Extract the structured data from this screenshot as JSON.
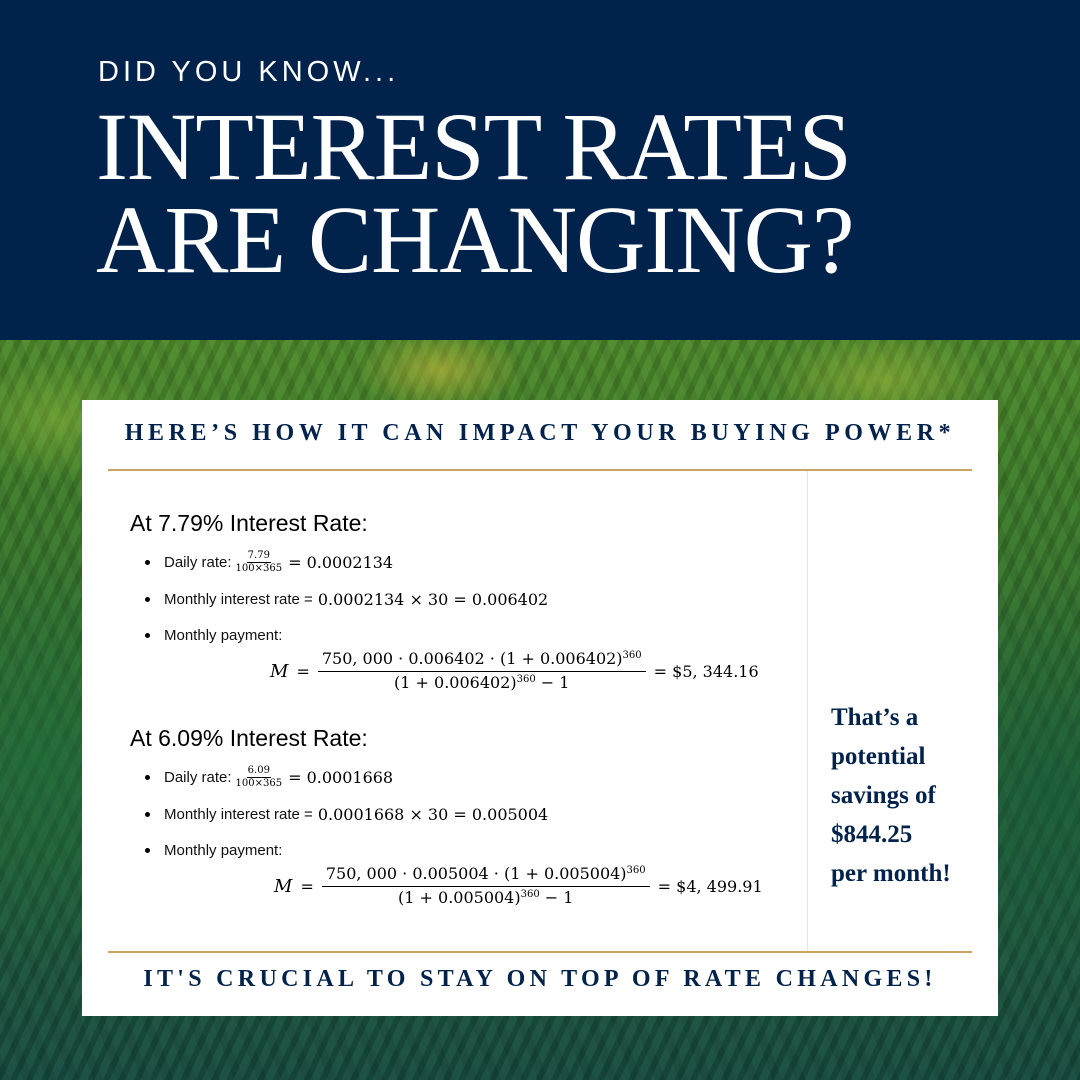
{
  "header": {
    "eyebrow": "DID YOU KNOW...",
    "headline_line1": "INTEREST RATES",
    "headline_line2": "ARE CHANGING?"
  },
  "card": {
    "title": "HERE’S HOW IT CAN IMPACT YOUR BUYING POWER*",
    "footer": "IT'S CRUCIAL TO STAY ON TOP OF RATE CHANGES!",
    "savings_lines": [
      "That’s a",
      "potential",
      "savings of",
      "$844.25",
      "per month!"
    ]
  },
  "calculations": [
    {
      "heading": "At 7.79% Interest Rate:",
      "daily_label": "Daily rate:",
      "daily_num": "7.79",
      "daily_den": "100×365",
      "daily_result": "= 0.0002134",
      "monthly_label": "Monthly interest rate =",
      "monthly_expr": "0.0002134 × 30 = 0.006402",
      "payment_label": "Monthly payment:",
      "payment_var": "M",
      "payment_eq": "=",
      "payment_num_main": "750, 000 · 0.006402 · (1 + 0.006402)",
      "payment_num_exp": "360",
      "payment_den_main": "(1 + 0.006402)",
      "payment_den_exp": "360",
      "payment_den_tail": " − 1",
      "payment_result": "= $5, 344.16"
    },
    {
      "heading": "At 6.09% Interest Rate:",
      "daily_label": "Daily rate:",
      "daily_num": "6.09",
      "daily_den": "100×365",
      "daily_result": "= 0.0001668",
      "monthly_label": "Monthly interest rate =",
      "monthly_expr": "0.0001668 × 30 = 0.005004",
      "payment_label": "Monthly payment:",
      "payment_var": "M",
      "payment_eq": "=",
      "payment_num_main": "750, 000 · 0.005004 · (1 + 0.005004)",
      "payment_num_exp": "360",
      "payment_den_main": "(1 + 0.005004)",
      "payment_den_exp": "360",
      "payment_den_tail": " − 1",
      "payment_result": "= $4, 499.91"
    }
  ],
  "colors": {
    "navy": "#00224b",
    "gold_rule": "#c9a561",
    "card_bg": "#ffffff",
    "landscape": "#2f6d2e"
  }
}
